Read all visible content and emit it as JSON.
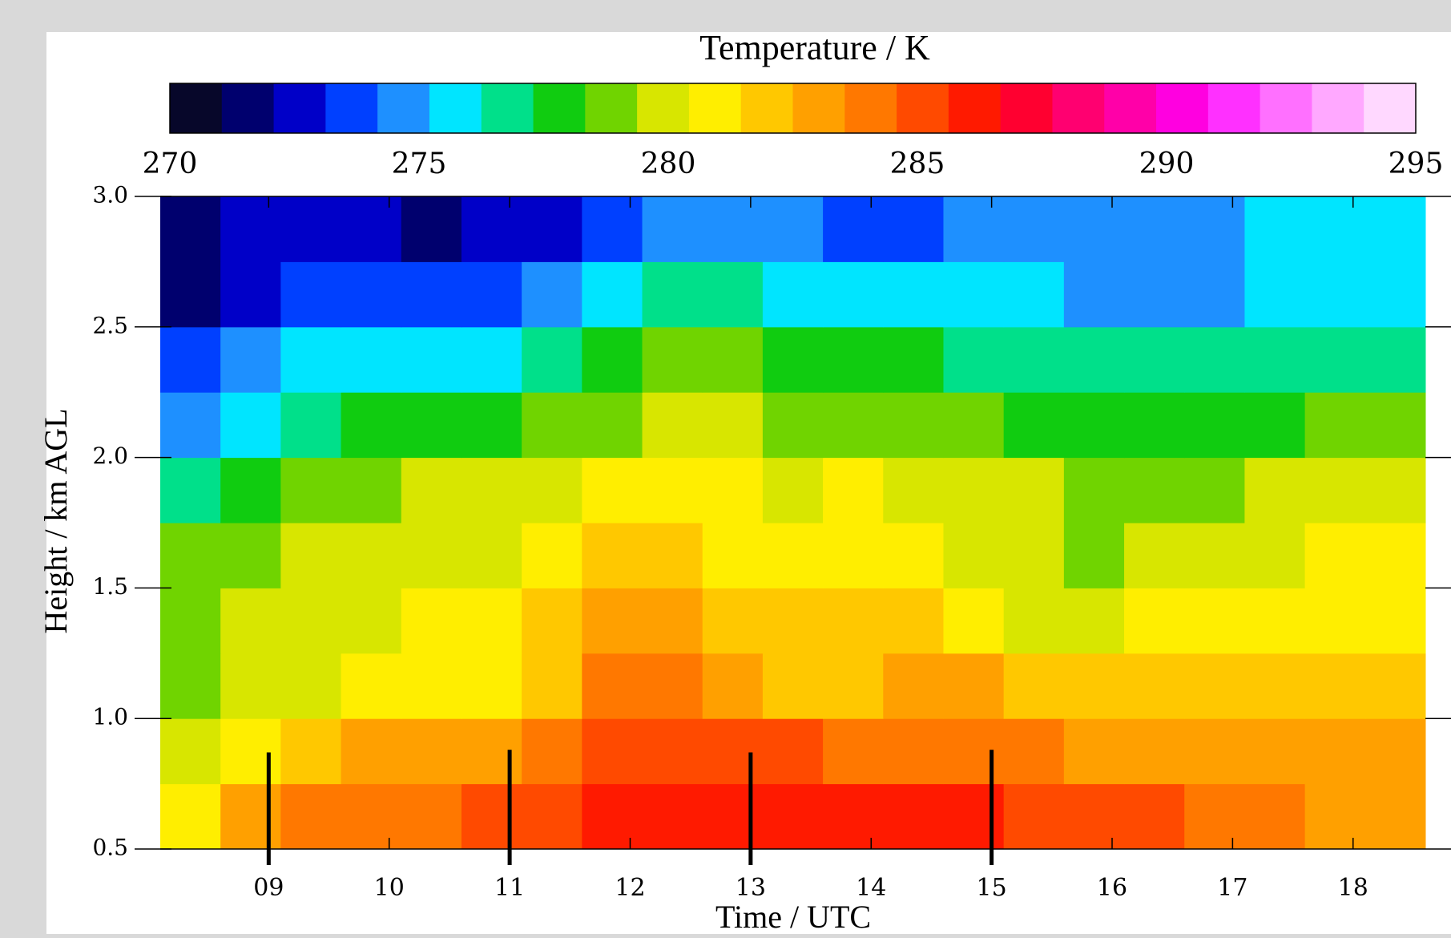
{
  "chart_data": {
    "type": "heatmap",
    "title": "Temperature / K",
    "xlabel": "Time / UTC",
    "ylabel": "Height / km AGL",
    "xlim": [
      8.1,
      18.6
    ],
    "ylim": [
      0.5,
      3.0
    ],
    "clim": [
      270,
      295
    ],
    "cticks": [
      270,
      275,
      280,
      285,
      290,
      295
    ],
    "xticks": [
      {
        "value": 9,
        "label": "09"
      },
      10,
      11,
      12,
      13,
      14,
      15,
      16,
      17,
      18
    ],
    "yticks": [
      {
        "value": 0.5,
        "label": "0.5"
      },
      {
        "value": 1,
        "label": "1.0"
      },
      1.5,
      {
        "value": 2,
        "label": "2.0"
      },
      2.5,
      {
        "value": 3,
        "label": "3.0"
      }
    ],
    "colormap": [
      "#07072a",
      "#00006e",
      "#0000c8",
      "#0040ff",
      "#1e90ff",
      "#00e5ff",
      "#00e08a",
      "#10cc10",
      "#70d400",
      "#d8e600",
      "#ffee00",
      "#ffc800",
      "#ffa000",
      "#ff7800",
      "#ff4a00",
      "#ff1a00",
      "#ff0030",
      "#ff0070",
      "#ff00a8",
      "#ff00e0",
      "#ff30ff",
      "#ff70ff",
      "#ffa8ff",
      "#ffd8ff"
    ],
    "x": [
      8.35,
      8.85,
      9.35,
      9.85,
      10.35,
      10.85,
      11.35,
      11.85,
      12.35,
      12.85,
      13.35,
      13.85,
      14.35,
      14.85,
      15.35,
      15.85,
      16.35,
      16.85,
      17.35,
      17.85,
      18.35
    ],
    "y": [
      0.625,
      0.875,
      1.125,
      1.375,
      1.625,
      1.875,
      2.125,
      2.375,
      2.625,
      2.875
    ],
    "z": [
      [
        281,
        283,
        284,
        284,
        284,
        285,
        285,
        286,
        286,
        286,
        286,
        286,
        286,
        286,
        285.5,
        285,
        285,
        284.5,
        284,
        283.5,
        283
      ],
      [
        279.5,
        281,
        282,
        282.5,
        283,
        283.5,
        284,
        285,
        285,
        285,
        285,
        284.5,
        284,
        284,
        284,
        283.5,
        283.5,
        283,
        283,
        283,
        282.5
      ],
      [
        278.5,
        279.5,
        280,
        280.5,
        281,
        281,
        282,
        284,
        284,
        283,
        282,
        282,
        283,
        283,
        282,
        282,
        282,
        282,
        282,
        282,
        281.5
      ],
      [
        279,
        279.5,
        280,
        280,
        280.5,
        281,
        282,
        283,
        283,
        282,
        282,
        282,
        282,
        281,
        280,
        280,
        281,
        281,
        281,
        281,
        281
      ],
      [
        279,
        279,
        279.5,
        280,
        280,
        280,
        281,
        282,
        282,
        281,
        281,
        281,
        281,
        280,
        280,
        279,
        279.5,
        280,
        280,
        280.5,
        280.5
      ],
      [
        276.5,
        278,
        279,
        279,
        279.5,
        279.5,
        280,
        281,
        281,
        281,
        280,
        281,
        280,
        280,
        279.5,
        279,
        279,
        279,
        279.5,
        279.5,
        279.5
      ],
      [
        274.5,
        275.5,
        277,
        278,
        278,
        278,
        279,
        279,
        280,
        279.5,
        279,
        279,
        279,
        278.5,
        278,
        278,
        278,
        278,
        278,
        278.5,
        278.5
      ],
      [
        273.5,
        274.5,
        275.5,
        276,
        276,
        276,
        277,
        278,
        279,
        278.5,
        278,
        278,
        277.5,
        277,
        277,
        276.5,
        276.5,
        276.5,
        277,
        277,
        277
      ],
      [
        272,
        273,
        273.5,
        274,
        273.5,
        274,
        274.5,
        275.5,
        277,
        277,
        276,
        276,
        275.5,
        275.5,
        275.5,
        275,
        275,
        275,
        275.5,
        276,
        276
      ],
      [
        271.5,
        272.5,
        273,
        273,
        272,
        272.5,
        273,
        274,
        275,
        275,
        274.5,
        274,
        274,
        274.5,
        275,
        274.5,
        274.5,
        275,
        275.5,
        276,
        276
      ]
    ],
    "markers": {
      "x": [
        9,
        11,
        13,
        15
      ],
      "top": [
        0.87,
        0.88,
        0.87,
        0.88
      ],
      "color": "#000000"
    }
  }
}
